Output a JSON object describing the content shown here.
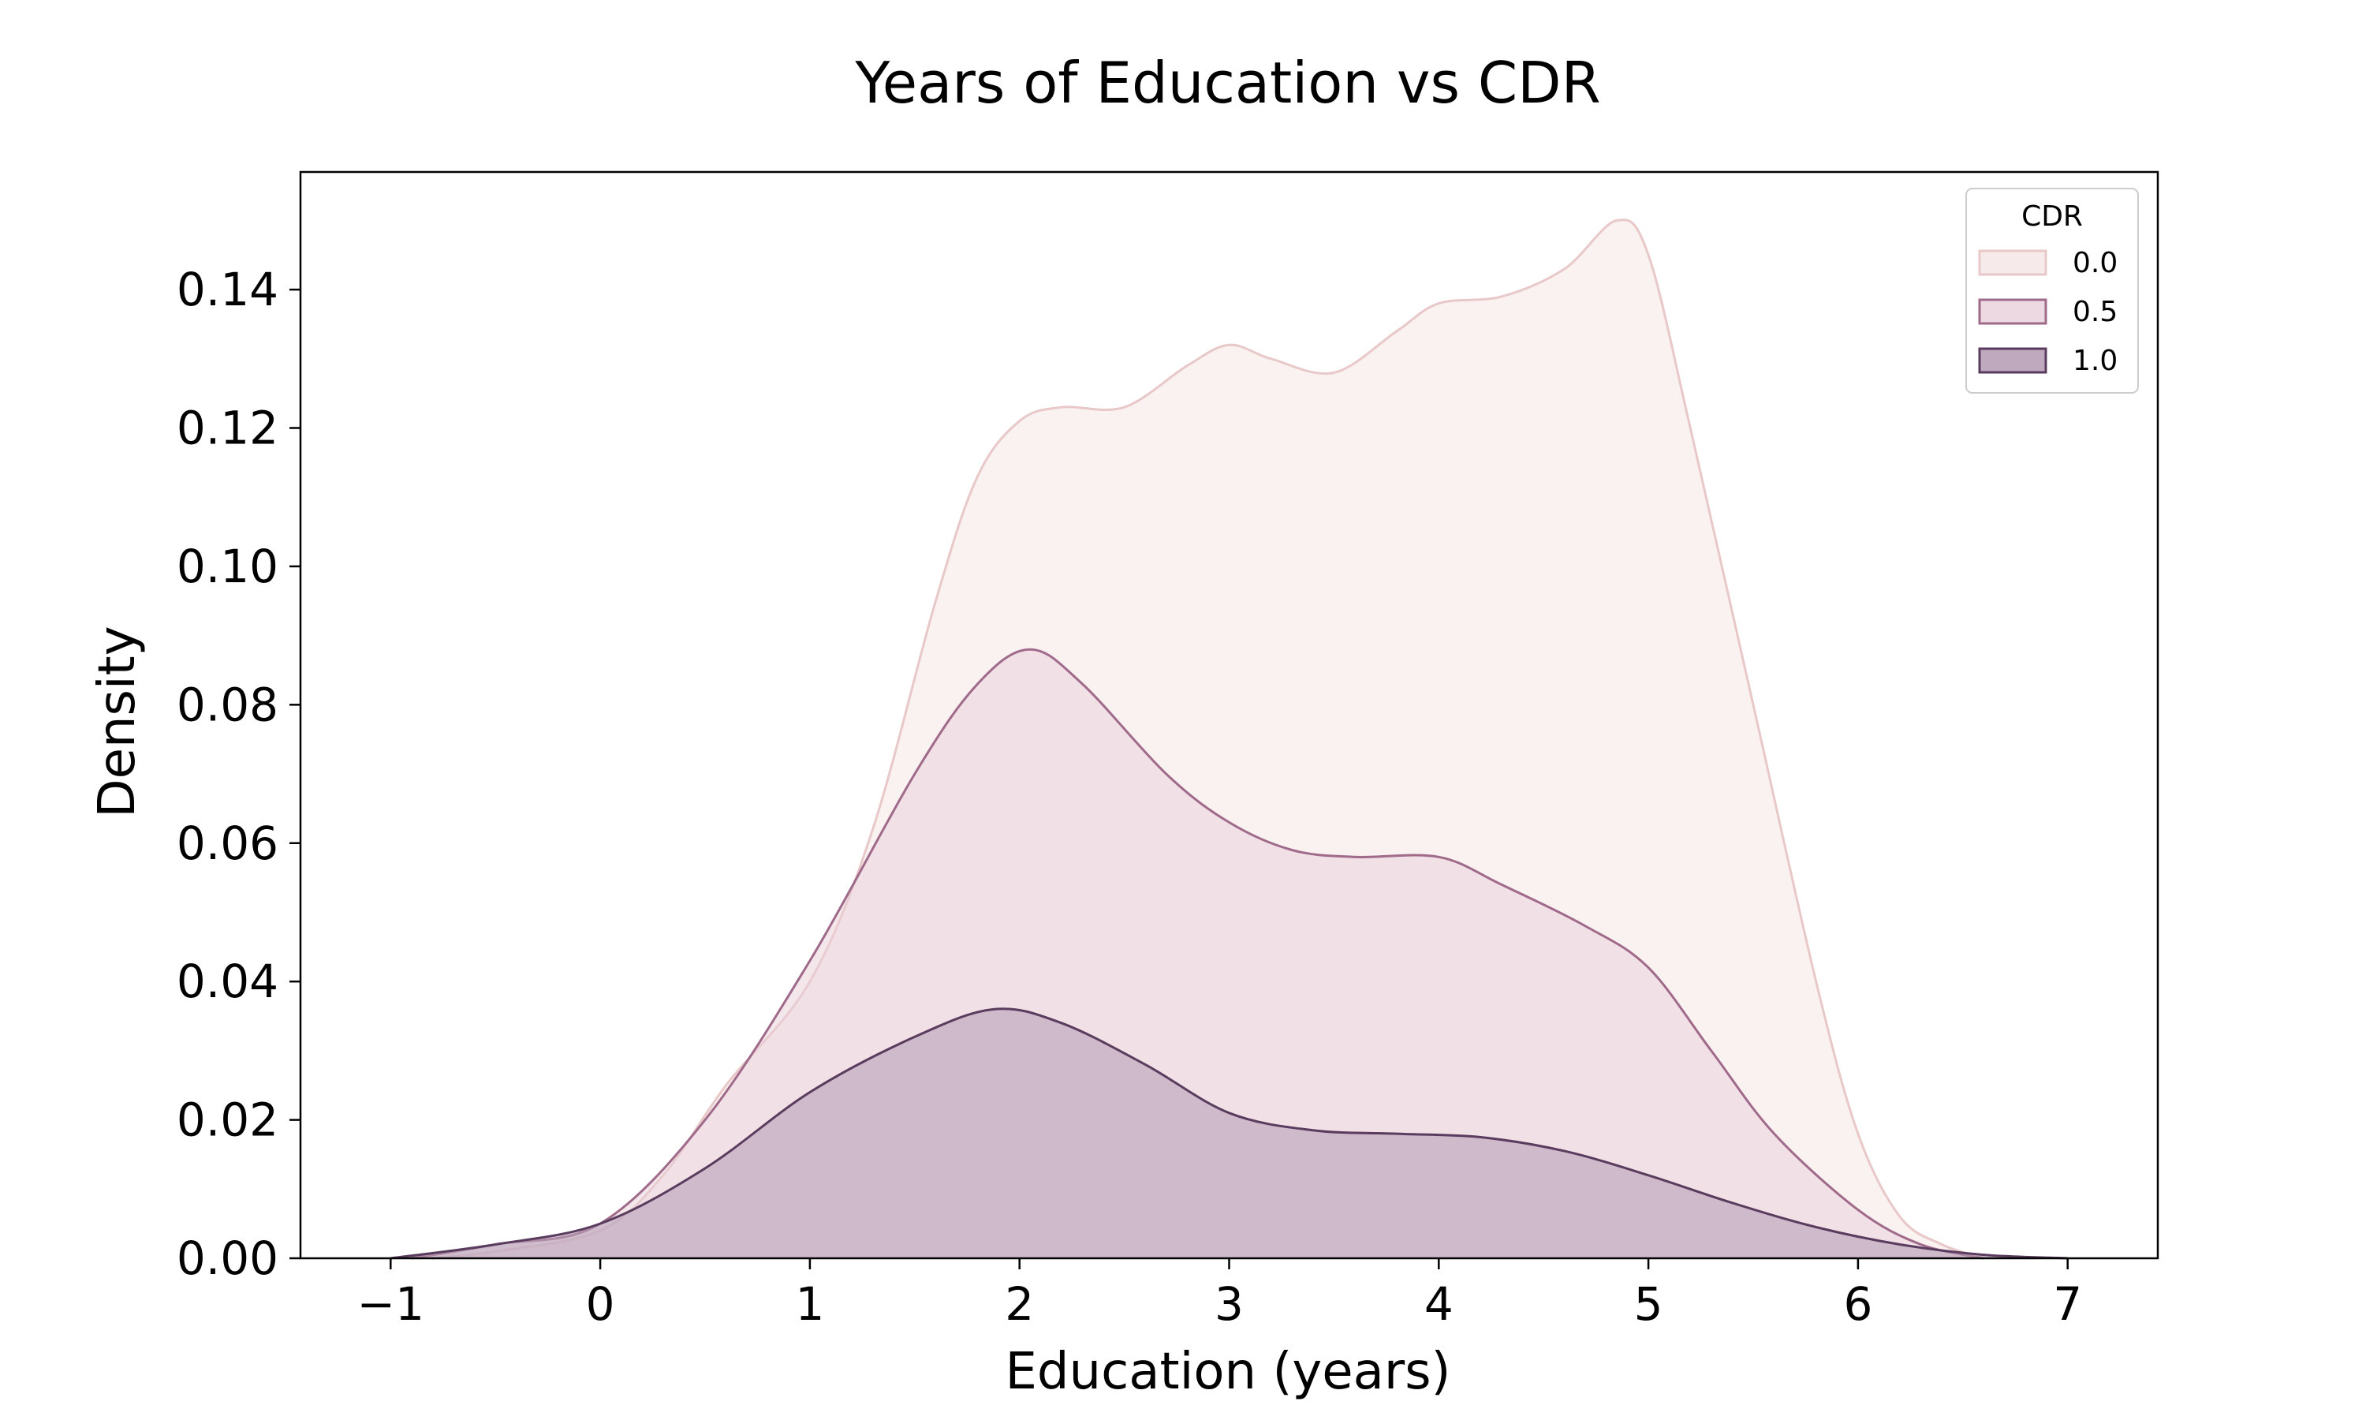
{
  "chart_data": {
    "type": "area",
    "title": "Years of Education vs CDR",
    "xlabel": "Education (years)",
    "ylabel": "Density",
    "xlim": [
      -1.43,
      7.43
    ],
    "ylim": [
      0,
      0.157
    ],
    "x_ticks": [
      -1,
      0,
      1,
      2,
      3,
      4,
      5,
      6,
      7
    ],
    "x_tick_labels": [
      "−1",
      "0",
      "1",
      "2",
      "3",
      "4",
      "5",
      "6",
      "7"
    ],
    "y_ticks": [
      0,
      0.02,
      0.04,
      0.06,
      0.08,
      0.1,
      0.12,
      0.14
    ],
    "y_tick_labels": [
      "0.00",
      "0.02",
      "0.04",
      "0.06",
      "0.08",
      "0.10",
      "0.12",
      "0.14"
    ],
    "grid": false,
    "legend": {
      "title": "CDR",
      "position": "top-right"
    },
    "series": [
      {
        "name": "0.0",
        "color": "#e8c8c8",
        "fill": "#f5e6e6",
        "fill_opacity": 0.55,
        "x": [
          -0.8,
          -0.5,
          0,
          0.3,
          0.6,
          1.0,
          1.3,
          1.6,
          1.8,
          2.0,
          2.2,
          2.5,
          2.8,
          3.0,
          3.2,
          3.5,
          3.8,
          4.0,
          4.3,
          4.6,
          4.85,
          5.0,
          5.2,
          5.5,
          5.8,
          6.0,
          6.2,
          6.4,
          6.6
        ],
        "y": [
          0,
          0.001,
          0.004,
          0.012,
          0.025,
          0.04,
          0.062,
          0.095,
          0.113,
          0.121,
          0.123,
          0.123,
          0.129,
          0.132,
          0.13,
          0.128,
          0.134,
          0.138,
          0.139,
          0.143,
          0.15,
          0.145,
          0.12,
          0.08,
          0.04,
          0.018,
          0.006,
          0.002,
          0
        ]
      },
      {
        "name": "0.5",
        "color": "#a06a8a",
        "fill": "#e8d0da",
        "fill_opacity": 0.5,
        "x": [
          -0.9,
          -0.5,
          0,
          0.5,
          1.0,
          1.5,
          1.8,
          2.05,
          2.3,
          2.7,
          3.0,
          3.3,
          3.6,
          4.0,
          4.3,
          4.7,
          5.0,
          5.3,
          5.6,
          6.0,
          6.3,
          6.6
        ],
        "y": [
          0,
          0.002,
          0.005,
          0.02,
          0.043,
          0.07,
          0.083,
          0.088,
          0.083,
          0.07,
          0.063,
          0.059,
          0.058,
          0.058,
          0.054,
          0.048,
          0.042,
          0.03,
          0.018,
          0.007,
          0.002,
          0
        ]
      },
      {
        "name": "1.0",
        "color": "#5a3c5e",
        "fill": "#b8a0b8",
        "fill_opacity": 0.6,
        "x": [
          -1.0,
          -0.5,
          0,
          0.5,
          1.0,
          1.5,
          1.88,
          2.2,
          2.6,
          3.0,
          3.4,
          3.8,
          4.2,
          4.6,
          5.0,
          5.4,
          5.8,
          6.2,
          6.6,
          7.0
        ],
        "y": [
          0,
          0.002,
          0.005,
          0.013,
          0.024,
          0.032,
          0.036,
          0.034,
          0.028,
          0.021,
          0.0185,
          0.018,
          0.0175,
          0.0155,
          0.012,
          0.008,
          0.0045,
          0.002,
          0.0005,
          0
        ]
      }
    ]
  }
}
